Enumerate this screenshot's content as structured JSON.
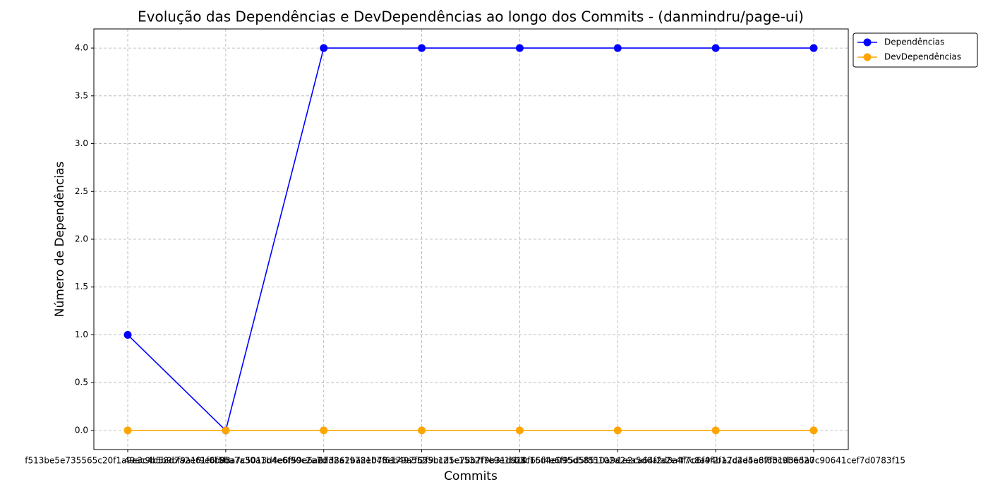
{
  "chart_data": {
    "type": "line",
    "title": "Evolução das Dependências e DevDependências ao longo dos Commits - (danmindru/page-ui)",
    "xlabel": "Commits",
    "ylabel": "Número de Dependências",
    "categories": [
      "f513be5e735565c20f1a9e3c4b58d7a2e61f0b93",
      "49ac9b5b9bf9a1f9e6f5ba7a30a1b4e6f90c2a7d",
      "8ba7c5013d4e6f59e6a27d862ba21078eb497f63",
      "6d32a1978eb4f6179a5525bc21c1532f7e9e1b28",
      "2f9c1d5e78b7f9b31d910f65f4e6f95d5f85102a",
      "b3c16d4e095d58510a9c2ea5d6afa2e4f7c8a94b",
      "1e2ca64f2d8a4f7c6f4f2f12d4e5a87f3c9b6d20",
      "a7c2d4e6f8b1d3e5a7c90641cef7d0783f15"
    ],
    "series": [
      {
        "name": "Dependências",
        "color": "#0000ff",
        "values": [
          1,
          0,
          4,
          4,
          4,
          4,
          4,
          4
        ]
      },
      {
        "name": "DevDependências",
        "color": "#ffa500",
        "values": [
          0,
          0,
          0,
          0,
          0,
          0,
          0,
          0
        ]
      }
    ],
    "ylim": [
      -0.2,
      4.2
    ],
    "yticks": [
      {
        "value": 0,
        "label": "0.0"
      },
      0.5,
      {
        "value": 1,
        "label": "1.0"
      },
      1.5,
      {
        "value": 2,
        "label": "2.0"
      },
      2.5,
      {
        "value": 3,
        "label": "3.0"
      },
      3.5,
      {
        "value": 4,
        "label": "4.0"
      }
    ],
    "grid": true,
    "legend": "upper-right-outside"
  }
}
